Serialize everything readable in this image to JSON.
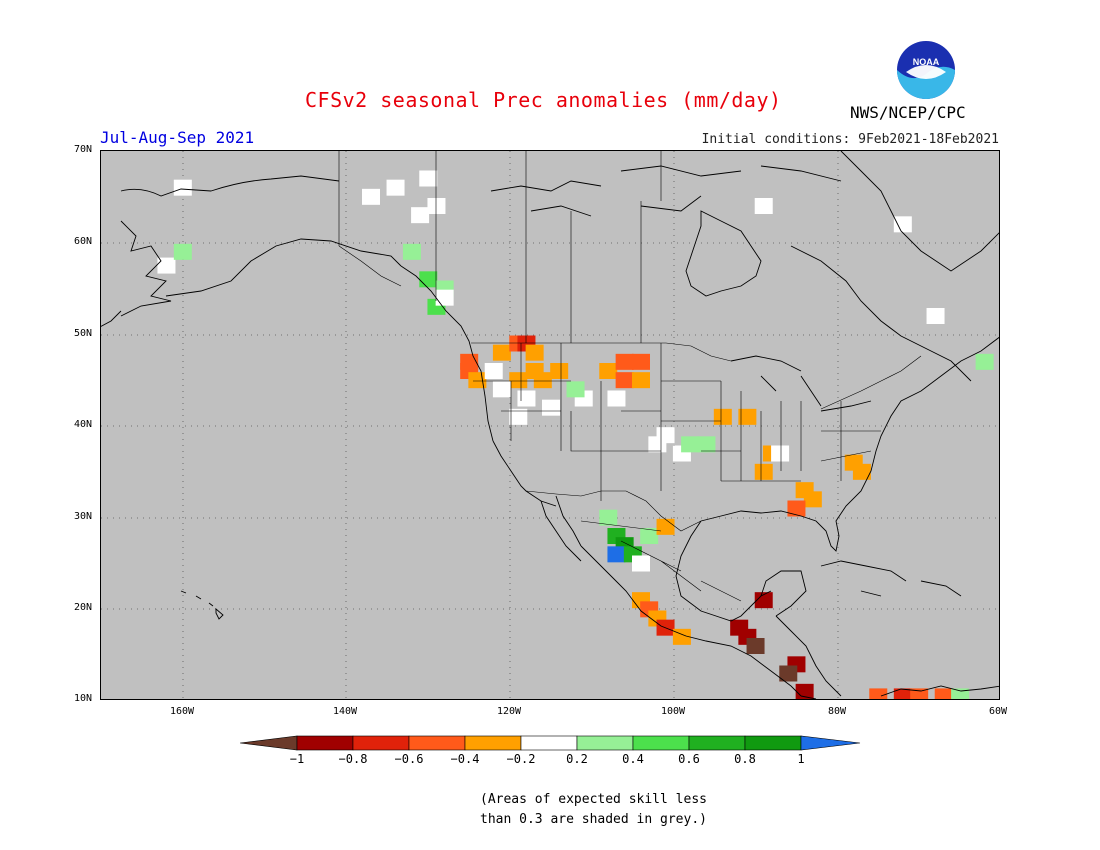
{
  "title": "CFSv2 seasonal Prec anomalies (mm/day)",
  "season": "Jul-Aug-Sep 2021",
  "initial_conditions": "Initial conditions: 9Feb2021-18Feb2021",
  "agency": "NWS/NCEP/CPC",
  "logo_text": "NOAA",
  "lat_labels": [
    "70N",
    "60N",
    "50N",
    "40N",
    "30N",
    "20N",
    "10N"
  ],
  "lon_labels": [
    "160W",
    "140W",
    "120W",
    "100W",
    "80W",
    "60W"
  ],
  "colorbar": {
    "ticks": [
      "−1",
      "−0.8",
      "−0.6",
      "−0.4",
      "−0.2",
      "0.2",
      "0.4",
      "0.6",
      "0.8",
      "1"
    ],
    "colors": [
      "#6b3a2a",
      "#a00000",
      "#e0220a",
      "#ff5a1a",
      "#ffa000",
      "#ffffff",
      "#96f096",
      "#4ce04c",
      "#20b020",
      "#109a10",
      "#1e6ee6"
    ]
  },
  "note_line1": "(Areas of expected skill less",
  "note_line2": "than 0.3 are shaded in grey.)",
  "map_colors": {
    "grey": "#c0c0c0"
  },
  "anomaly_cells": [
    {
      "lon": -162,
      "lat": 57.5,
      "c": "white"
    },
    {
      "lon": -160,
      "lat": 59,
      "c": "g1"
    },
    {
      "lon": -134,
      "lat": 66,
      "c": "white"
    },
    {
      "lon": -137,
      "lat": 65,
      "c": "white"
    },
    {
      "lon": -131,
      "lat": 63,
      "c": "white"
    },
    {
      "lon": -129,
      "lat": 64,
      "c": "white"
    },
    {
      "lon": -132,
      "lat": 59,
      "c": "g1"
    },
    {
      "lon": -130,
      "lat": 56,
      "c": "g2"
    },
    {
      "lon": -128,
      "lat": 55,
      "c": "g1"
    },
    {
      "lon": -129,
      "lat": 53,
      "c": "g2"
    },
    {
      "lon": -128,
      "lat": 54,
      "c": "white"
    },
    {
      "lon": -125,
      "lat": 47,
      "c": "r3"
    },
    {
      "lon": -125,
      "lat": 46,
      "c": "r3"
    },
    {
      "lon": -124,
      "lat": 45,
      "c": "o4"
    },
    {
      "lon": -122,
      "lat": 46,
      "c": "white"
    },
    {
      "lon": -121,
      "lat": 48,
      "c": "o4"
    },
    {
      "lon": -119,
      "lat": 49,
      "c": "r3"
    },
    {
      "lon": -118,
      "lat": 49,
      "c": "r2"
    },
    {
      "lon": -117,
      "lat": 48,
      "c": "o4"
    },
    {
      "lon": -117,
      "lat": 46,
      "c": "o4"
    },
    {
      "lon": -116,
      "lat": 45,
      "c": "o4"
    },
    {
      "lon": -114,
      "lat": 46,
      "c": "o4"
    },
    {
      "lon": -119,
      "lat": 45,
      "c": "o4"
    },
    {
      "lon": -121,
      "lat": 44,
      "c": "white"
    },
    {
      "lon": -118,
      "lat": 43,
      "c": "white"
    },
    {
      "lon": -115,
      "lat": 42,
      "c": "white"
    },
    {
      "lon": -111,
      "lat": 43,
      "c": "white"
    },
    {
      "lon": -119,
      "lat": 41,
      "c": "white"
    },
    {
      "lon": -108,
      "lat": 46,
      "c": "o4"
    },
    {
      "lon": -106,
      "lat": 47,
      "c": "r3"
    },
    {
      "lon": -104,
      "lat": 47,
      "c": "r3"
    },
    {
      "lon": -106,
      "lat": 45,
      "c": "r3"
    },
    {
      "lon": -104,
      "lat": 45,
      "c": "o4"
    },
    {
      "lon": -107,
      "lat": 43,
      "c": "white"
    },
    {
      "lon": -112,
      "lat": 44,
      "c": "g1"
    },
    {
      "lon": -101,
      "lat": 39,
      "c": "white"
    },
    {
      "lon": -99,
      "lat": 37,
      "c": "white"
    },
    {
      "lon": -98,
      "lat": 38,
      "c": "g1"
    },
    {
      "lon": -96,
      "lat": 38,
      "c": "g1"
    },
    {
      "lon": -102,
      "lat": 38,
      "c": "white"
    },
    {
      "lon": -94,
      "lat": 41,
      "c": "o4"
    },
    {
      "lon": -91,
      "lat": 41,
      "c": "o4"
    },
    {
      "lon": -88,
      "lat": 37,
      "c": "o4"
    },
    {
      "lon": -87,
      "lat": 37,
      "c": "white"
    },
    {
      "lon": -89,
      "lat": 35,
      "c": "o4"
    },
    {
      "lon": -84,
      "lat": 33,
      "c": "o4"
    },
    {
      "lon": -83,
      "lat": 32,
      "c": "o4"
    },
    {
      "lon": -85,
      "lat": 31,
      "c": "r3"
    },
    {
      "lon": -78,
      "lat": 36,
      "c": "o4"
    },
    {
      "lon": -77,
      "lat": 35,
      "c": "o4"
    },
    {
      "lon": -62,
      "lat": 47,
      "c": "g1"
    },
    {
      "lon": -108,
      "lat": 30,
      "c": "g1"
    },
    {
      "lon": -107,
      "lat": 28,
      "c": "g3"
    },
    {
      "lon": -106,
      "lat": 27,
      "c": "g4"
    },
    {
      "lon": -107,
      "lat": 26,
      "c": "b"
    },
    {
      "lon": -105,
      "lat": 26,
      "c": "g3"
    },
    {
      "lon": -104,
      "lat": 25,
      "c": "white"
    },
    {
      "lon": -103,
      "lat": 28,
      "c": "g1"
    },
    {
      "lon": -101,
      "lat": 29,
      "c": "o4"
    },
    {
      "lon": -104,
      "lat": 21,
      "c": "o4"
    },
    {
      "lon": -103,
      "lat": 20,
      "c": "r3"
    },
    {
      "lon": -102,
      "lat": 19,
      "c": "o4"
    },
    {
      "lon": -101,
      "lat": 18,
      "c": "r2"
    },
    {
      "lon": -99,
      "lat": 17,
      "c": "o4"
    },
    {
      "lon": -92,
      "lat": 18,
      "c": "r1"
    },
    {
      "lon": -91,
      "lat": 17,
      "c": "r1"
    },
    {
      "lon": -90,
      "lat": 16,
      "c": "br"
    },
    {
      "lon": -89,
      "lat": 21,
      "c": "r1"
    },
    {
      "lon": -85,
      "lat": 14,
      "c": "r1"
    },
    {
      "lon": -86,
      "lat": 13,
      "c": "br"
    },
    {
      "lon": -84,
      "lat": 11,
      "c": "r1"
    },
    {
      "lon": -75,
      "lat": 10.5,
      "c": "r3"
    },
    {
      "lon": -72,
      "lat": 10.5,
      "c": "r2"
    },
    {
      "lon": -70,
      "lat": 10.5,
      "c": "r3"
    },
    {
      "lon": -67,
      "lat": 10.5,
      "c": "r3"
    },
    {
      "lon": -65,
      "lat": 10.5,
      "c": "g1"
    },
    {
      "lon": -130,
      "lat": 67,
      "c": "white"
    },
    {
      "lon": -160,
      "lat": 66,
      "c": "white"
    },
    {
      "lon": -68,
      "lat": 52,
      "c": "white"
    },
    {
      "lon": -72,
      "lat": 62,
      "c": "white"
    },
    {
      "lon": -89,
      "lat": 64,
      "c": "white"
    }
  ]
}
